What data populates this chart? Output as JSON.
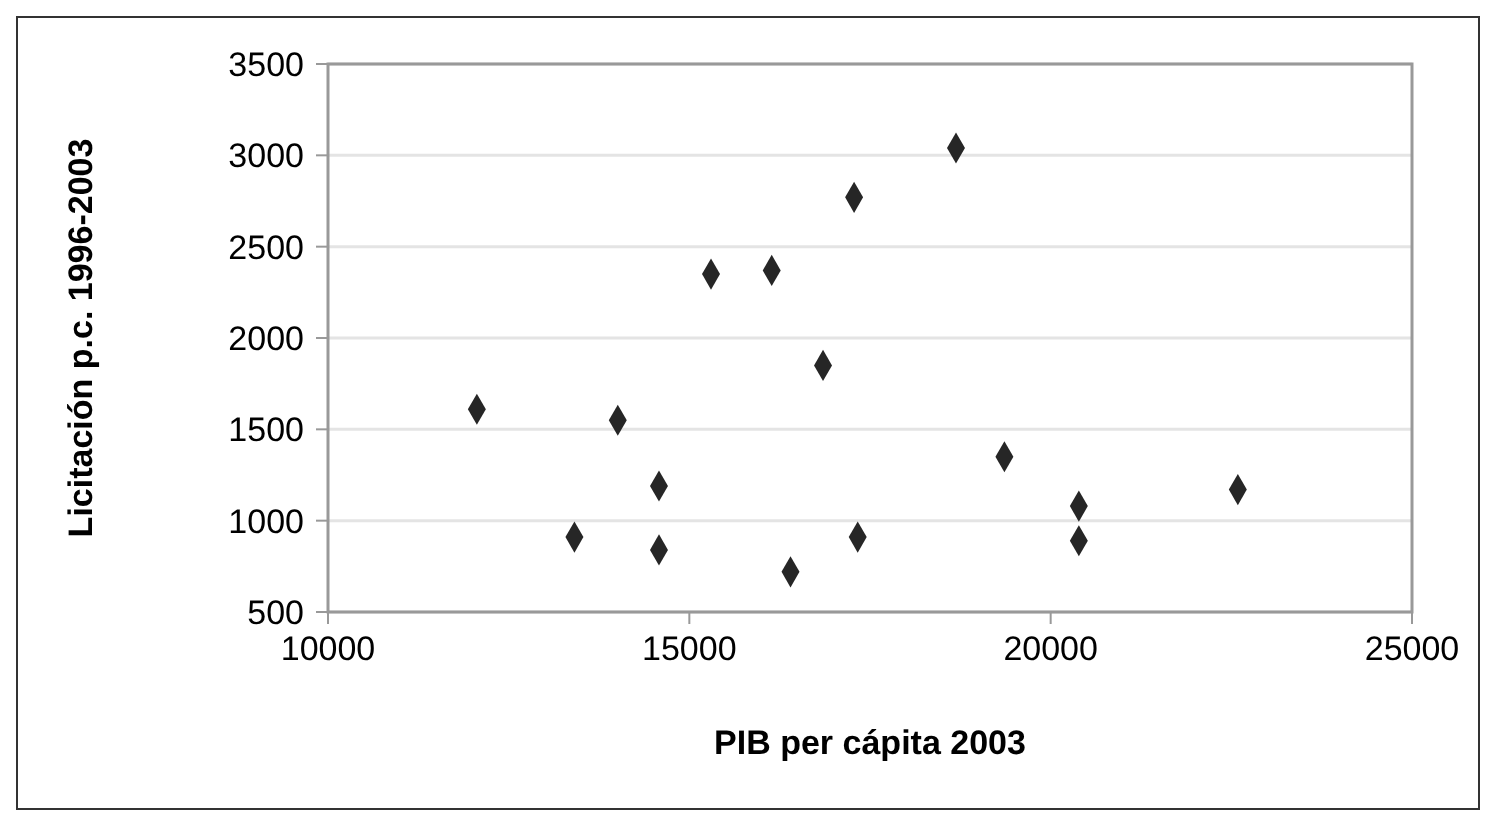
{
  "chart_data": {
    "type": "scatter",
    "xlabel": "PIB per cápita 2003",
    "ylabel": "Licitación p.c. 1996-2003",
    "x": [
      12060,
      13410,
      14010,
      14580,
      14580,
      15300,
      16140,
      16850,
      16400,
      17280,
      17330,
      18690,
      19360,
      20390,
      20390,
      22590
    ],
    "series": [
      {
        "color": "#262626",
        "values": [
          1610,
          910,
          1550,
          1190,
          840,
          2350,
          2370,
          1850,
          720,
          2770,
          910,
          3040,
          1350,
          1080,
          890,
          1170
        ]
      }
    ],
    "marker": "diamond",
    "xlim": [
      10000,
      25000
    ],
    "xticks": [
      10000,
      15000,
      20000,
      25000
    ],
    "ylim": [
      500,
      3500
    ],
    "yticks": [
      500,
      1000,
      1500,
      2000,
      2500,
      3000,
      3500
    ],
    "grid": "y"
  }
}
